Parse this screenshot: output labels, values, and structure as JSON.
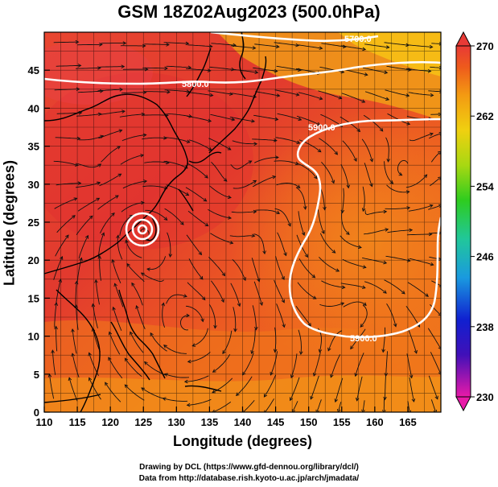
{
  "title": "GSM 18Z02Aug2023 (500.0hPa)",
  "map": {
    "x_label": "Longitude (degrees)",
    "y_label": "Latitude  (degrees)",
    "x_ticks": [
      "110",
      "115",
      "120",
      "125",
      "130",
      "135",
      "140",
      "145",
      "150",
      "155",
      "160",
      "165"
    ],
    "y_ticks": [
      "0",
      "5",
      "10",
      "15",
      "20",
      "25",
      "30",
      "35",
      "40",
      "45"
    ],
    "lon_range": [
      110,
      170
    ],
    "lat_range": [
      0,
      50
    ],
    "contour_labels": [
      "5700.0",
      "5800.0",
      "5900.0",
      "5900.0"
    ]
  },
  "colorbar": {
    "tick_labels": [
      "270",
      "262",
      "254",
      "246",
      "238",
      "230"
    ],
    "range": [
      230,
      270
    ],
    "colors_low_to_high": [
      "#e81aa8",
      "#1010c8",
      "#1a9adf",
      "#21c79a",
      "#2ecc1f",
      "#a8d812",
      "#f0d010",
      "#f39a12",
      "#ee5a1c",
      "#e83a36"
    ]
  },
  "colors": {
    "field_warm": "#e33b2f",
    "field_mid": "#ee6a1e",
    "field_cool": "#f7b614",
    "contour": "#ffffff",
    "streamline": "#111111"
  },
  "credits": {
    "line1": "Drawing by DCL (https://www.gfd-dennou.org/library/dcl/)",
    "line2": "Data from http://database.rish.kyoto-u.ac.jp/arch/jmadata/"
  }
}
